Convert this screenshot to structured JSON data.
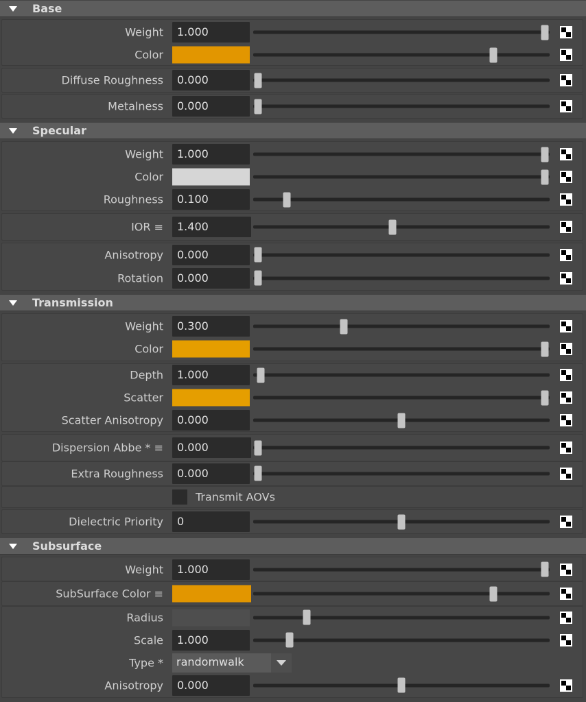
{
  "colors": {
    "base_color": "#e29600",
    "specular_color": "#d6d6d6",
    "transmission_color": "#e59e00",
    "transmission_scatter": "#e59e00",
    "subsurface_color": "#e29600",
    "subsurface_radius": "#4e4e4e"
  },
  "sections": {
    "base": {
      "title": "Base",
      "weight": {
        "label": "Weight",
        "value": "1.000",
        "slider": 1.0
      },
      "color": {
        "label": "Color",
        "slider": 0.82
      },
      "diffuse_roughness": {
        "label": "Diffuse Roughness",
        "value": "0.000",
        "slider": 0.0
      },
      "metalness": {
        "label": "Metalness",
        "value": "0.000",
        "slider": 0.0
      }
    },
    "specular": {
      "title": "Specular",
      "weight": {
        "label": "Weight",
        "value": "1.000",
        "slider": 1.0
      },
      "color": {
        "label": "Color",
        "slider": 1.0
      },
      "roughness": {
        "label": "Roughness",
        "value": "0.100",
        "slider": 0.1
      },
      "ior": {
        "label": "IOR ≡",
        "value": "1.400",
        "slider": 0.47
      },
      "anisotropy": {
        "label": "Anisotropy",
        "value": "0.000",
        "slider": 0.0
      },
      "rotation": {
        "label": "Rotation",
        "value": "0.000",
        "slider": 0.0
      }
    },
    "transmission": {
      "title": "Transmission",
      "weight": {
        "label": "Weight",
        "value": "0.300",
        "slider": 0.3
      },
      "color": {
        "label": "Color",
        "slider": 1.0
      },
      "depth": {
        "label": "Depth",
        "value": "1.000",
        "slider": 0.01
      },
      "scatter": {
        "label": "Scatter",
        "slider": 1.0
      },
      "scatter_anisotropy": {
        "label": "Scatter Anisotropy",
        "value": "0.000",
        "slider": 0.5
      },
      "dispersion_abbe": {
        "label": "Dispersion Abbe * ≡",
        "value": "0.000",
        "slider": 0.0
      },
      "extra_roughness": {
        "label": "Extra Roughness",
        "value": "0.000",
        "slider": 0.0
      },
      "transmit_aovs": {
        "label": "Transmit AOVs",
        "checked": false
      },
      "dielectric_priority": {
        "label": "Dielectric Priority",
        "value": "0",
        "slider": 0.5
      }
    },
    "subsurface": {
      "title": "Subsurface",
      "weight": {
        "label": "Weight",
        "value": "1.000",
        "slider": 1.0
      },
      "color": {
        "label": "SubSurface Color ≡",
        "slider": 0.82
      },
      "radius": {
        "label": "Radius",
        "slider": 0.17
      },
      "scale": {
        "label": "Scale",
        "value": "1.000",
        "slider": 0.11
      },
      "type": {
        "label": "Type *",
        "value": "randomwalk"
      },
      "anisotropy": {
        "label": "Anisotropy",
        "value": "0.000",
        "slider": 0.5
      }
    }
  }
}
